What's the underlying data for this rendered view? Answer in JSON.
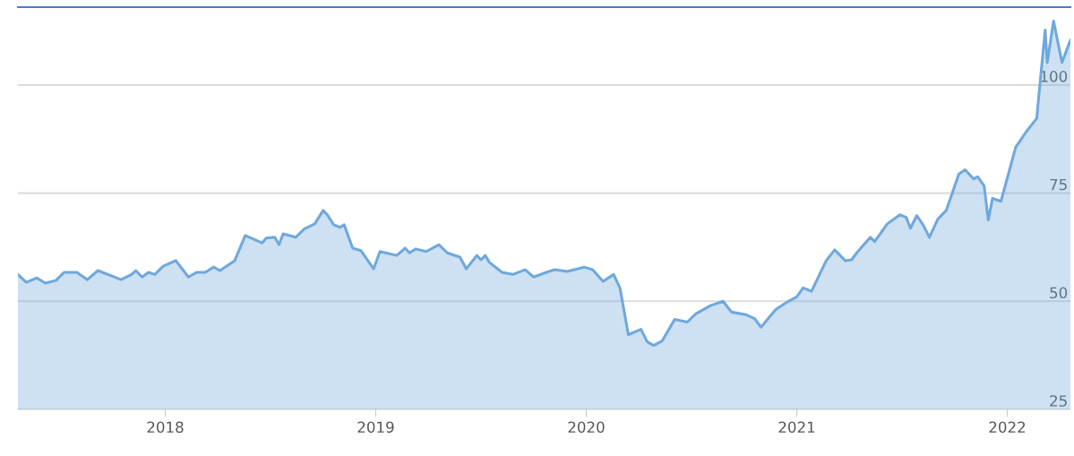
{
  "chart_data": {
    "type": "area",
    "x": [
      2017.3,
      2017.34,
      2017.39,
      2017.43,
      2017.48,
      2017.52,
      2017.58,
      2017.63,
      2017.68,
      2017.79,
      2017.84,
      2017.86,
      2017.89,
      2017.92,
      2017.95,
      2017.99,
      2018.05,
      2018.11,
      2018.15,
      2018.19,
      2018.23,
      2018.26,
      2018.33,
      2018.38,
      2018.46,
      2018.48,
      2018.52,
      2018.54,
      2018.56,
      2018.62,
      2018.66,
      2018.71,
      2018.75,
      2018.77,
      2018.8,
      2018.83,
      2018.85,
      2018.89,
      2018.93,
      2018.99,
      2019.02,
      2019.1,
      2019.14,
      2019.16,
      2019.19,
      2019.24,
      2019.3,
      2019.34,
      2019.4,
      2019.43,
      2019.48,
      2019.5,
      2019.52,
      2019.54,
      2019.6,
      2019.65,
      2019.71,
      2019.75,
      2019.81,
      2019.85,
      2019.91,
      2019.99,
      2020.03,
      2020.08,
      2020.13,
      2020.16,
      2020.2,
      2020.26,
      2020.29,
      2020.32,
      2020.36,
      2020.42,
      2020.48,
      2020.52,
      2020.59,
      2020.65,
      2020.69,
      2020.76,
      2020.8,
      2020.83,
      2020.9,
      2020.96,
      2021.0,
      2021.03,
      2021.07,
      2021.14,
      2021.18,
      2021.23,
      2021.26,
      2021.29,
      2021.35,
      2021.37,
      2021.43,
      2021.49,
      2021.52,
      2021.54,
      2021.57,
      2021.6,
      2021.63,
      2021.67,
      2021.71,
      2021.77,
      2021.8,
      2021.84,
      2021.86,
      2021.89,
      2021.91,
      2021.93,
      2021.97,
      2022.04,
      2022.09,
      2022.14,
      2022.15,
      2022.18,
      2022.19,
      2022.22,
      2022.26,
      2022.3
    ],
    "series": [
      {
        "color": "#6fa8dc",
        "values": [
          56.2,
          54.4,
          55.4,
          54.2,
          54.8,
          56.7,
          56.7,
          55.0,
          57.1,
          55.0,
          56.2,
          57.1,
          55.6,
          56.7,
          56.2,
          58.1,
          59.4,
          55.6,
          56.7,
          56.7,
          57.9,
          57.1,
          59.4,
          65.2,
          63.5,
          64.6,
          64.8,
          63.1,
          65.6,
          64.8,
          66.7,
          67.9,
          71.0,
          70.0,
          67.7,
          67.1,
          67.7,
          62.3,
          61.7,
          57.5,
          61.5,
          60.6,
          62.3,
          61.2,
          62.1,
          61.5,
          63.1,
          61.2,
          60.2,
          57.5,
          60.6,
          59.6,
          60.6,
          59.0,
          56.7,
          56.2,
          57.3,
          55.6,
          56.7,
          57.3,
          56.9,
          57.9,
          57.3,
          54.6,
          56.2,
          53.1,
          42.3,
          43.5,
          40.6,
          39.8,
          40.8,
          45.8,
          45.2,
          47.1,
          49.0,
          50.0,
          47.5,
          46.9,
          46.0,
          44.0,
          48.1,
          50.0,
          51.0,
          53.1,
          52.3,
          59.4,
          61.9,
          59.4,
          59.6,
          61.5,
          64.8,
          63.8,
          67.9,
          70.0,
          69.4,
          66.9,
          69.8,
          67.7,
          64.8,
          69.0,
          71.0,
          79.4,
          80.4,
          78.3,
          78.8,
          76.7,
          68.8,
          73.8,
          73.1,
          85.6,
          89.2,
          92.3,
          97.5,
          112.7,
          105.2,
          114.8,
          105.2,
          110.4
        ]
      }
    ],
    "xlim": [
      2017.3,
      2022.3
    ],
    "xticks": [
      2018,
      2019,
      2020,
      2021,
      2022
    ],
    "ylim": [
      25,
      118
    ],
    "yticks": [
      25,
      50,
      75,
      100
    ],
    "grid": "y",
    "legend": false
  }
}
